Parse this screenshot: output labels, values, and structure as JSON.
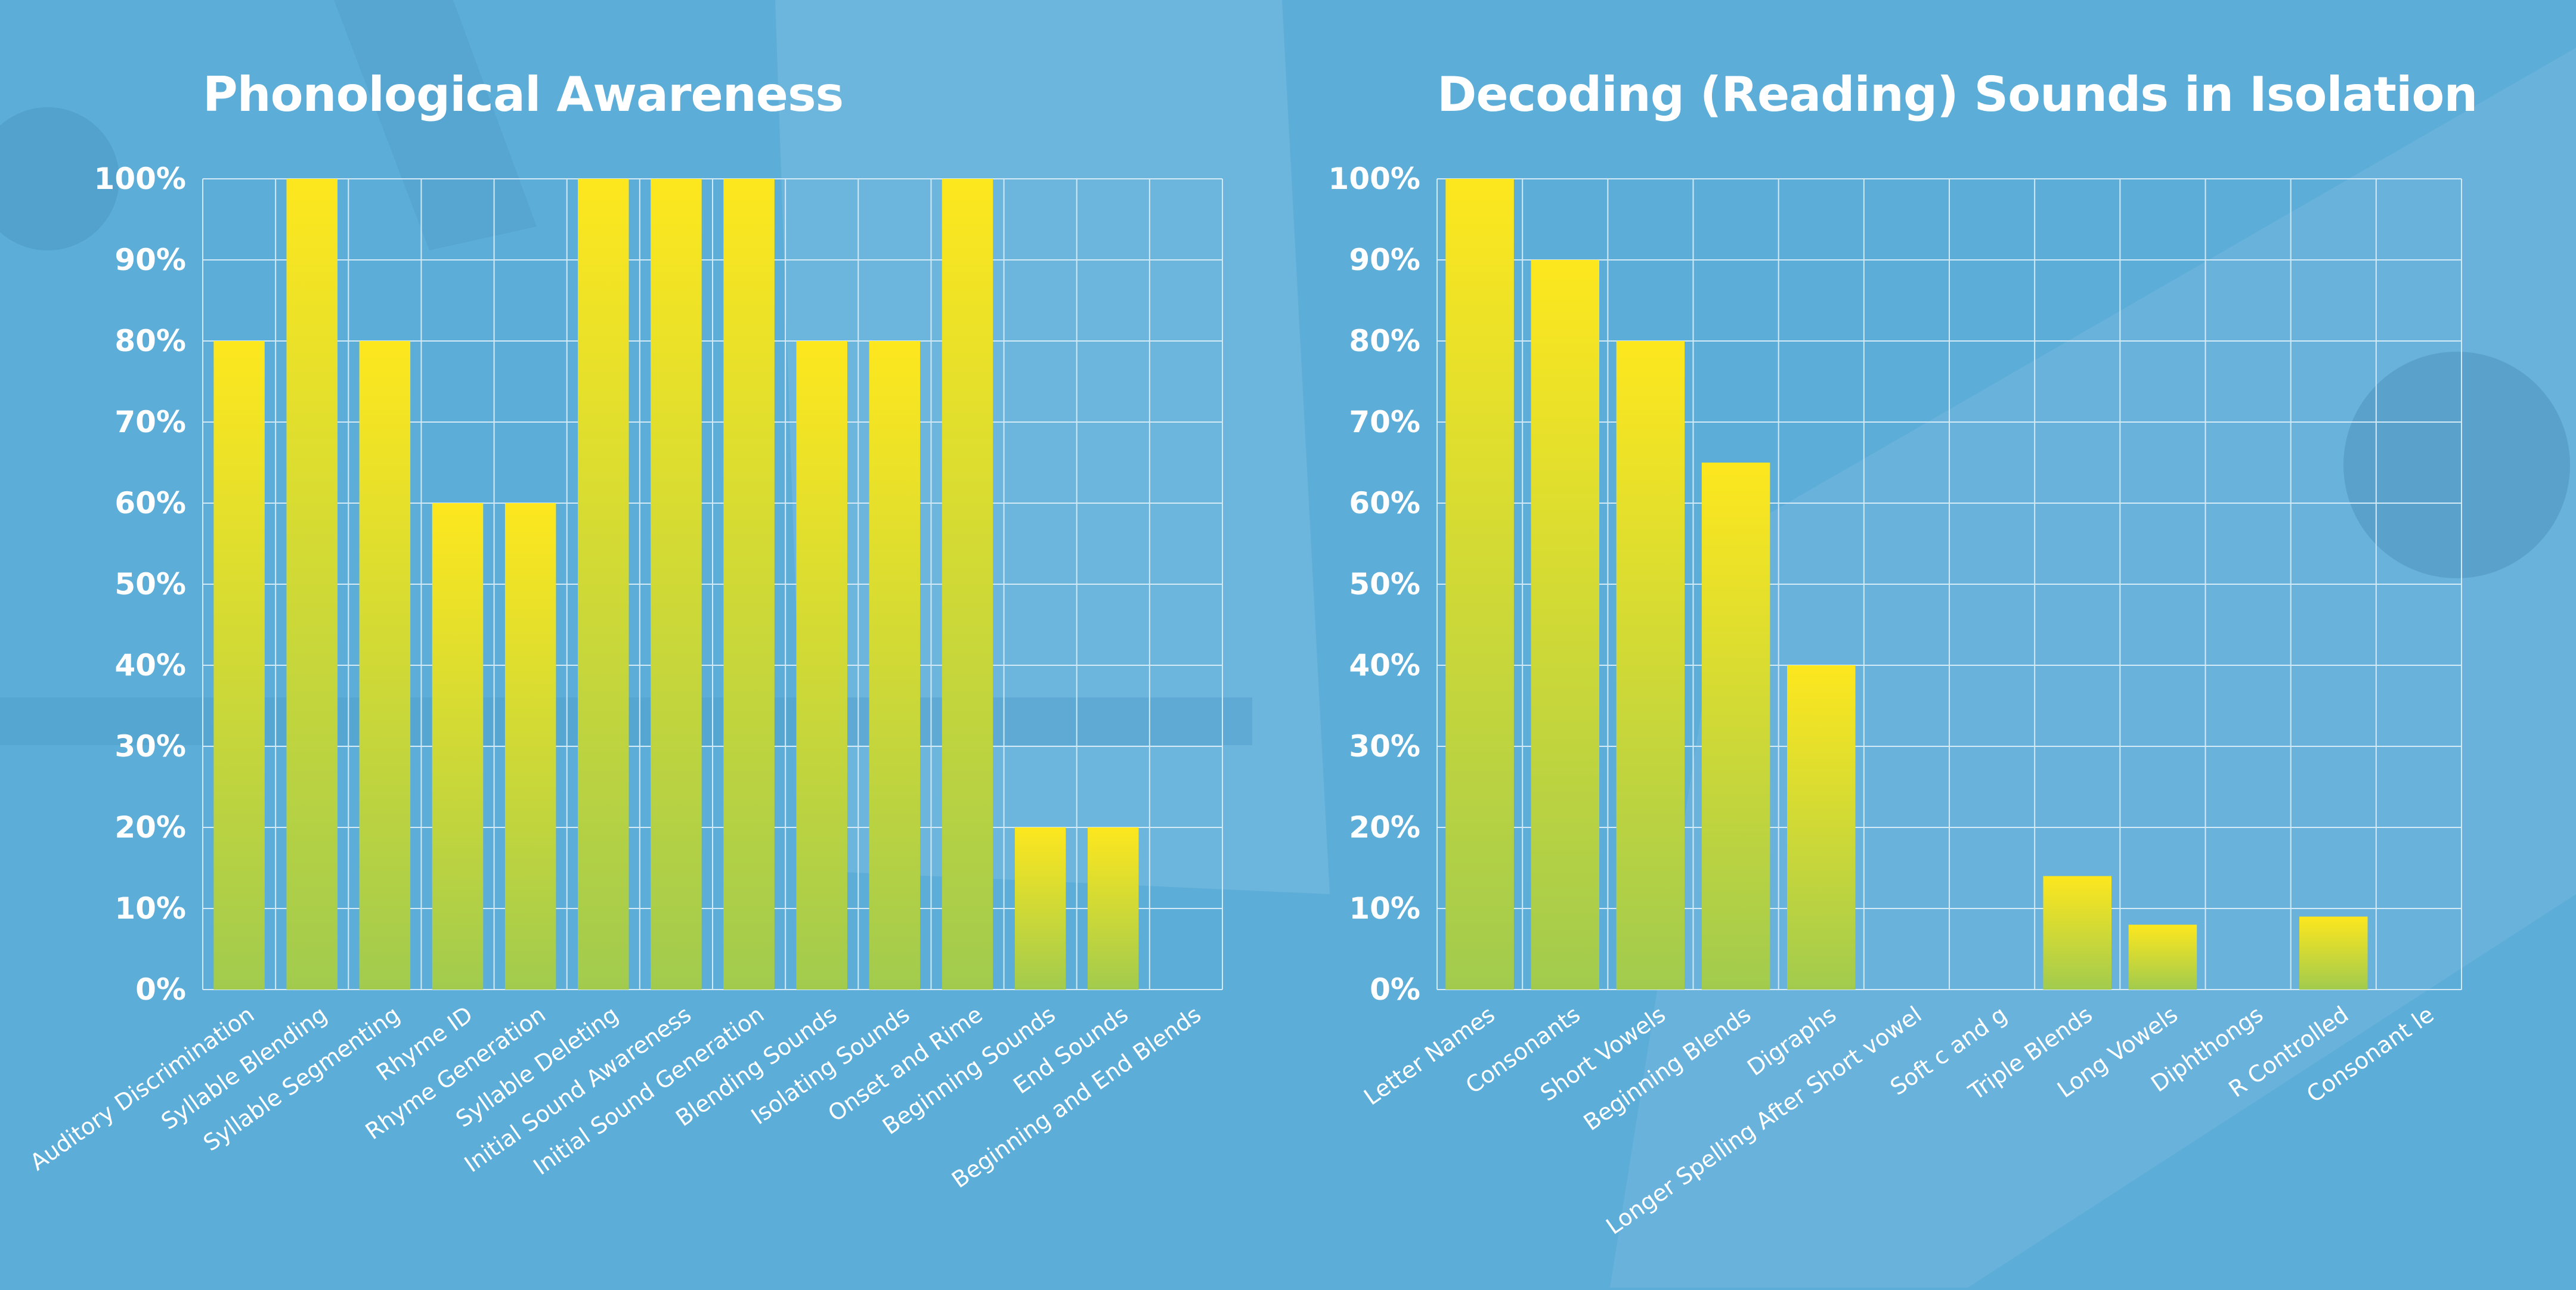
{
  "colors": {
    "background": "#5dadd9",
    "bar_top": "#fde71e",
    "bar_bottom": "#a2cb4e",
    "grid": "#d3e9f5",
    "text": "#ffffff"
  },
  "chart_data": [
    {
      "type": "bar",
      "title": "Phonological Awareness",
      "categories": [
        "Auditory Discrimination",
        "Syllable Blending",
        "Syllable Segmenting",
        "Rhyme ID",
        "Rhyme Generation",
        "Syllable Deleting",
        "Initial Sound Awareness",
        "Initial Sound Generation",
        "Blending Sounds",
        "Isolating Sounds",
        "Onset and Rime",
        "Beginning Sounds",
        "End Sounds",
        "Beginning and End Blends"
      ],
      "values": [
        80,
        100,
        80,
        60,
        60,
        100,
        100,
        100,
        80,
        80,
        100,
        20,
        20,
        0
      ],
      "ylim": [
        0,
        100
      ],
      "yticks": [
        "0%",
        "10%",
        "20%",
        "30%",
        "40%",
        "50%",
        "60%",
        "70%",
        "80%",
        "90%",
        "100%"
      ],
      "grid": true
    },
    {
      "type": "bar",
      "title": "Decoding (Reading) Sounds in Isolation",
      "categories": [
        "Letter Names",
        "Consonants",
        "Short Vowels",
        "Beginning Blends",
        "Digraphs",
        "Longer Spelling After Short vowel",
        "Soft c and g",
        "Triple Blends",
        "Long Vowels",
        "Diphthongs",
        "R Controlled",
        "Consonant le"
      ],
      "values": [
        100,
        90,
        80,
        65,
        40,
        0,
        0,
        14,
        8,
        0,
        9,
        0
      ],
      "ylim": [
        0,
        100
      ],
      "yticks": [
        "0%",
        "10%",
        "20%",
        "30%",
        "40%",
        "50%",
        "60%",
        "70%",
        "80%",
        "90%",
        "100%"
      ],
      "grid": true
    }
  ]
}
